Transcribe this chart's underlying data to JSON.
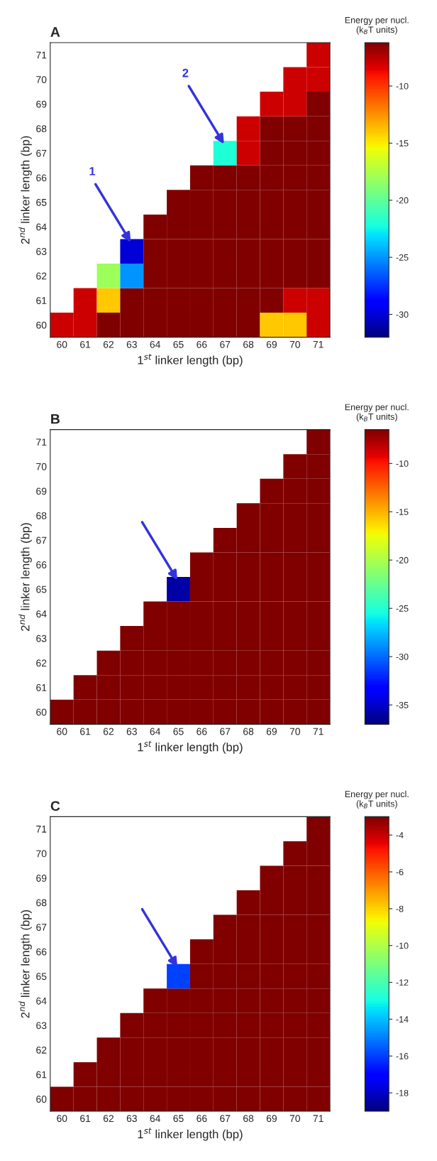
{
  "chart_data": [
    {
      "type": "heatmap",
      "title": "A",
      "xlabel": "1$^{st}$ linker length (bp)",
      "ylabel": "2$^{nd}$ linker length (bp)",
      "clabel": "Energy per nucl.\n(k$_{B}$T units)",
      "categories": [
        "60",
        "61",
        "62",
        "63",
        "64",
        "65",
        "66",
        "67",
        "68",
        "69",
        "70",
        "71"
      ],
      "y_categories": [
        "71",
        "70",
        "69",
        "68",
        "67",
        "66",
        "65",
        "64",
        "63",
        "62",
        "61",
        "60"
      ],
      "cells": [
        [
          null,
          null,
          null,
          null,
          null,
          null,
          null,
          null,
          null,
          null,
          null,
          -8
        ],
        [
          null,
          null,
          null,
          null,
          null,
          null,
          null,
          null,
          null,
          null,
          -8,
          -8
        ],
        [
          null,
          null,
          null,
          null,
          null,
          null,
          null,
          null,
          null,
          -8,
          -8,
          -6.2
        ],
        [
          null,
          null,
          null,
          null,
          null,
          null,
          null,
          null,
          -8,
          -6.2,
          -6.2,
          -6.2
        ],
        [
          null,
          null,
          null,
          null,
          null,
          null,
          null,
          -22,
          -8,
          -6.2,
          -6.2,
          -6.2
        ],
        [
          null,
          null,
          null,
          null,
          null,
          null,
          -6.2,
          -6.2,
          -6.2,
          -6.2,
          -6.2,
          -6.2
        ],
        [
          null,
          null,
          null,
          null,
          null,
          -6.2,
          -6.2,
          -6.2,
          -6.2,
          -6.2,
          -6.2,
          -6.2
        ],
        [
          null,
          null,
          null,
          null,
          -6.2,
          -6.2,
          -6.2,
          -6.2,
          -6.2,
          -6.2,
          -6.2,
          -6.2
        ],
        [
          null,
          null,
          null,
          -30,
          -6.2,
          -6.2,
          -6.2,
          -6.2,
          -6.2,
          -6.2,
          -6.2,
          -6.2
        ],
        [
          null,
          null,
          -18,
          -25,
          -6.2,
          -6.2,
          -6.2,
          -6.2,
          -6.2,
          -6.2,
          -6.2,
          -6.2
        ],
        [
          null,
          -8,
          -14,
          -6.2,
          -6.2,
          -6.2,
          -6.2,
          -6.2,
          -6.2,
          -6.2,
          -8,
          -8
        ],
        [
          -8,
          -8,
          -6.2,
          -6.2,
          -6.2,
          -6.2,
          -6.2,
          -6.2,
          -6.2,
          -14,
          -14,
          -8
        ]
      ],
      "clim": [
        -32,
        -6.2
      ],
      "cticks": [
        -30,
        -25,
        -20,
        -15,
        -10
      ],
      "annotations": [
        "1",
        "2"
      ]
    },
    {
      "type": "heatmap",
      "title": "B",
      "xlabel": "1$^{st}$ linker length (bp)",
      "ylabel": "2$^{nd}$ linker length (bp)",
      "clabel": "Energy per nucl.\n(k$_{B}$T units)",
      "categories": [
        "60",
        "61",
        "62",
        "63",
        "64",
        "65",
        "66",
        "67",
        "68",
        "69",
        "70",
        "71"
      ],
      "y_categories": [
        "71",
        "70",
        "69",
        "68",
        "67",
        "66",
        "65",
        "64",
        "63",
        "62",
        "61",
        "60"
      ],
      "cells": [
        [
          null,
          null,
          null,
          null,
          null,
          null,
          null,
          null,
          null,
          null,
          null,
          -6.5
        ],
        [
          null,
          null,
          null,
          null,
          null,
          null,
          null,
          null,
          null,
          null,
          -6.5,
          -6.5
        ],
        [
          null,
          null,
          null,
          null,
          null,
          null,
          null,
          null,
          null,
          -6.5,
          -6.5,
          -6.5
        ],
        [
          null,
          null,
          null,
          null,
          null,
          null,
          null,
          null,
          -6.5,
          -6.5,
          -6.5,
          -6.5
        ],
        [
          null,
          null,
          null,
          null,
          null,
          null,
          null,
          -6.5,
          -6.5,
          -6.5,
          -6.5,
          -6.5
        ],
        [
          null,
          null,
          null,
          null,
          null,
          null,
          -6.5,
          -6.5,
          -6.5,
          -6.5,
          -6.5,
          -6.5
        ],
        [
          null,
          null,
          null,
          null,
          null,
          -36,
          -6.5,
          -6.5,
          -6.5,
          -6.5,
          -6.5,
          -6.5
        ],
        [
          null,
          null,
          null,
          null,
          -6.5,
          -6.5,
          -6.5,
          -6.5,
          -6.5,
          -6.5,
          -6.5,
          -6.5
        ],
        [
          null,
          null,
          null,
          -6.5,
          -6.5,
          -6.5,
          -6.5,
          -6.5,
          -6.5,
          -6.5,
          -6.5,
          -6.5
        ],
        [
          null,
          null,
          -6.5,
          -6.5,
          -6.5,
          -6.5,
          -6.5,
          -6.5,
          -6.5,
          -6.5,
          -6.5,
          -6.5
        ],
        [
          null,
          -6.5,
          -6.5,
          -6.5,
          -6.5,
          -6.5,
          -6.5,
          -6.5,
          -6.5,
          -6.5,
          -6.5,
          -6.5
        ],
        [
          -6.5,
          -6.5,
          -6.5,
          -6.5,
          -6.5,
          -6.5,
          -6.5,
          -6.5,
          -6.5,
          -6.5,
          -6.5,
          -6.5
        ]
      ],
      "clim": [
        -37,
        -6.5
      ],
      "cticks": [
        -35,
        -30,
        -25,
        -20,
        -15,
        -10
      ]
    },
    {
      "type": "heatmap",
      "title": "C",
      "xlabel": "1$^{st}$ linker length (bp)",
      "ylabel": "2$^{nd}$ linker length (bp)",
      "clabel": "Energy per nucl.\n(k$_{B}$T units)",
      "categories": [
        "60",
        "61",
        "62",
        "63",
        "64",
        "65",
        "66",
        "67",
        "68",
        "69",
        "70",
        "71"
      ],
      "y_categories": [
        "71",
        "70",
        "69",
        "68",
        "67",
        "66",
        "65",
        "64",
        "63",
        "62",
        "61",
        "60"
      ],
      "cells": [
        [
          null,
          null,
          null,
          null,
          null,
          null,
          null,
          null,
          null,
          null,
          null,
          -3
        ],
        [
          null,
          null,
          null,
          null,
          null,
          null,
          null,
          null,
          null,
          null,
          -3,
          -3
        ],
        [
          null,
          null,
          null,
          null,
          null,
          null,
          null,
          null,
          null,
          -3,
          -3,
          -3
        ],
        [
          null,
          null,
          null,
          null,
          null,
          null,
          null,
          null,
          -3,
          -3,
          -3,
          -3
        ],
        [
          null,
          null,
          null,
          null,
          null,
          null,
          null,
          -3,
          -3,
          -3,
          -3,
          -3
        ],
        [
          null,
          null,
          null,
          null,
          null,
          null,
          -3,
          -3,
          -3,
          -3,
          -3,
          -3
        ],
        [
          null,
          null,
          null,
          null,
          null,
          -16,
          -3,
          -3,
          -3,
          -3,
          -3,
          -3
        ],
        [
          null,
          null,
          null,
          null,
          -3,
          -3,
          -3,
          -3,
          -3,
          -3,
          -3,
          -3
        ],
        [
          null,
          null,
          null,
          -3,
          -3,
          -3,
          -3,
          -3,
          -3,
          -3,
          -3,
          -3
        ],
        [
          null,
          null,
          -3,
          -3,
          -3,
          -3,
          -3,
          -3,
          -3,
          -3,
          -3,
          -3
        ],
        [
          null,
          -3,
          -3,
          -3,
          -3,
          -3,
          -3,
          -3,
          -3,
          -3,
          -3,
          -3
        ],
        [
          -3,
          -3,
          -3,
          -3,
          -3,
          -3,
          -3,
          -3,
          -3,
          -3,
          -3,
          -3
        ]
      ],
      "clim": [
        -19,
        -3
      ],
      "cticks": [
        -18,
        -16,
        -14,
        -12,
        -10,
        -8,
        -6,
        -4
      ]
    }
  ]
}
